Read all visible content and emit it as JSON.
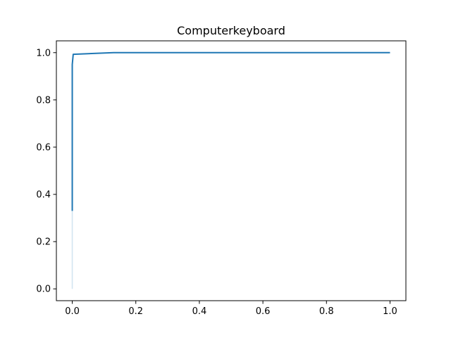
{
  "chart_data": {
    "type": "line",
    "title": "Computerkeyboard",
    "xlabel": "",
    "ylabel": "",
    "xlim": [
      -0.05,
      1.05
    ],
    "ylim": [
      -0.05,
      1.05
    ],
    "grid": false,
    "xticks": [
      {
        "value": 0.0,
        "label": "0.0"
      },
      {
        "value": 0.2,
        "label": "0.2"
      },
      {
        "value": 0.4,
        "label": "0.4"
      },
      {
        "value": 0.6,
        "label": "0.6"
      },
      {
        "value": 0.8,
        "label": "0.8"
      },
      {
        "value": 1.0,
        "label": "1.0"
      }
    ],
    "yticks": [
      {
        "value": 0.0,
        "label": "0.0"
      },
      {
        "value": 0.2,
        "label": "0.2"
      },
      {
        "value": 0.4,
        "label": "0.4"
      },
      {
        "value": 0.6,
        "label": "0.6"
      },
      {
        "value": 0.8,
        "label": "0.8"
      },
      {
        "value": 1.0,
        "label": "1.0"
      }
    ],
    "series": [
      {
        "color": "#1f77b4",
        "x": [
          0.0,
          0.0,
          0.003,
          0.13,
          0.5,
          1.0
        ],
        "y": [
          0.33,
          0.95,
          0.993,
          1.0,
          1.0,
          1.0
        ],
        "band": {
          "color": "#1f77b4",
          "x": [
            0.0,
            0.0,
            0.0
          ],
          "lower": [
            0.0,
            0.2,
            0.33
          ],
          "upper": [
            0.0,
            0.33,
            0.33
          ]
        }
      }
    ]
  }
}
